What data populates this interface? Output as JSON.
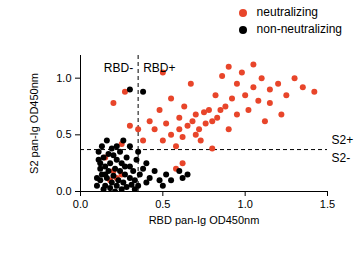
{
  "chart_data": {
    "type": "scatter",
    "x_label": "RBD pan-Ig OD450nm",
    "y_label": "S2 pan-Ig OD450nm",
    "xlim": [
      0,
      1.5
    ],
    "xticks": [
      {
        "value": 0,
        "label": "0.0"
      },
      0.5,
      {
        "value": 1,
        "label": "1.0"
      },
      1.5
    ],
    "ylim": [
      0,
      1.2
    ],
    "yticks": [
      {
        "value": 0,
        "label": "0.0"
      },
      0.5,
      {
        "value": 1,
        "label": "1.0"
      }
    ],
    "legend": "top-right",
    "marker": "circle",
    "x_threshold": {
      "value": 0.35,
      "labels": [
        "RBD-",
        "RBD+"
      ],
      "line_style": "dashed"
    },
    "y_threshold": {
      "value": 0.37,
      "labels": [
        "S2+",
        "S2-"
      ],
      "line_style": "dashed"
    },
    "series": [
      {
        "name": "neutralizing",
        "color": "#e8452a",
        "values": [
          [
            0.45,
            0.55
          ],
          [
            0.48,
            0.72
          ],
          [
            0.5,
            0.45
          ],
          [
            0.52,
            0.6
          ],
          [
            0.55,
            0.5
          ],
          [
            0.55,
            0.82
          ],
          [
            0.58,
            0.4
          ],
          [
            0.6,
            0.65
          ],
          [
            0.6,
            0.55
          ],
          [
            0.62,
            0.48
          ],
          [
            0.63,
            0.75
          ],
          [
            0.65,
            0.58
          ],
          [
            0.67,
            0.95
          ],
          [
            0.68,
            0.62
          ],
          [
            0.7,
            0.5
          ],
          [
            0.7,
            0.68
          ],
          [
            0.72,
            0.55
          ],
          [
            0.73,
            0.45
          ],
          [
            0.75,
            0.7
          ],
          [
            0.76,
            0.6
          ],
          [
            0.78,
            0.72
          ],
          [
            0.8,
            0.62
          ],
          [
            0.8,
            0.38
          ],
          [
            0.82,
            0.85
          ],
          [
            0.83,
            0.65
          ],
          [
            0.85,
            0.72
          ],
          [
            0.86,
            1.02
          ],
          [
            0.88,
            0.75
          ],
          [
            0.9,
            0.55
          ],
          [
            0.9,
            1.1
          ],
          [
            0.92,
            0.82
          ],
          [
            0.95,
            0.95
          ],
          [
            0.95,
            0.68
          ],
          [
            0.98,
            1.05
          ],
          [
            1.0,
            0.85
          ],
          [
            1.02,
            0.72
          ],
          [
            1.05,
            1.12
          ],
          [
            1.05,
            0.92
          ],
          [
            1.08,
            0.8
          ],
          [
            1.1,
            1.0
          ],
          [
            1.12,
            0.62
          ],
          [
            1.15,
            0.9
          ],
          [
            1.15,
            0.78
          ],
          [
            1.2,
            0.95
          ],
          [
            1.22,
            0.68
          ],
          [
            1.25,
            0.85
          ],
          [
            1.3,
            1.0
          ],
          [
            1.35,
            0.92
          ],
          [
            1.42,
            0.88
          ],
          [
            0.5,
            1.05
          ],
          [
            0.42,
            0.62
          ],
          [
            0.62,
            0.25
          ],
          [
            0.58,
            0.2
          ],
          [
            0.27,
            0.88
          ],
          [
            0.2,
            0.78
          ],
          [
            0.3,
            0.58
          ],
          [
            0.35,
            0.55
          ],
          [
            0.38,
            0.45
          ],
          [
            0.25,
            0.42
          ],
          [
            0.15,
            0.3
          ],
          [
            0.2,
            0.18
          ],
          [
            0.22,
            0.12
          ],
          [
            0.18,
            0.1
          ],
          [
            0.25,
            0.15
          ]
        ]
      },
      {
        "name": "non-neutralizing",
        "color": "#000000",
        "values": [
          [
            0.1,
            0.05
          ],
          [
            0.12,
            0.1
          ],
          [
            0.12,
            0.2
          ],
          [
            0.13,
            0.15
          ],
          [
            0.14,
            0.3
          ],
          [
            0.15,
            0.05
          ],
          [
            0.15,
            0.22
          ],
          [
            0.16,
            0.12
          ],
          [
            0.17,
            0.18
          ],
          [
            0.18,
            0.03
          ],
          [
            0.18,
            0.25
          ],
          [
            0.19,
            0.08
          ],
          [
            0.2,
            0.14
          ],
          [
            0.2,
            0.32
          ],
          [
            0.21,
            0.2
          ],
          [
            0.22,
            0.05
          ],
          [
            0.22,
            0.28
          ],
          [
            0.23,
            0.1
          ],
          [
            0.24,
            0.18
          ],
          [
            0.25,
            0.02
          ],
          [
            0.25,
            0.25
          ],
          [
            0.26,
            0.08
          ],
          [
            0.27,
            0.15
          ],
          [
            0.28,
            0.3
          ],
          [
            0.28,
            0.04
          ],
          [
            0.3,
            0.12
          ],
          [
            0.3,
            0.22
          ],
          [
            0.31,
            0.06
          ],
          [
            0.32,
            0.18
          ],
          [
            0.33,
            0.1
          ],
          [
            0.34,
            0.28
          ],
          [
            0.35,
            0.05
          ],
          [
            0.36,
            0.15
          ],
          [
            0.38,
            0.2
          ],
          [
            0.4,
            0.08
          ],
          [
            0.42,
            0.12
          ],
          [
            0.45,
            0.18
          ],
          [
            0.48,
            0.1
          ],
          [
            0.5,
            0.05
          ],
          [
            0.52,
            0.15
          ],
          [
            0.55,
            0.1
          ],
          [
            0.6,
            0.18
          ],
          [
            0.62,
            0.12
          ],
          [
            0.65,
            0.15
          ],
          [
            0.11,
            0.35
          ],
          [
            0.13,
            0.4
          ],
          [
            0.16,
            0.45
          ],
          [
            0.14,
            0.02
          ],
          [
            0.17,
            0.33
          ],
          [
            0.3,
            0.4
          ],
          [
            0.26,
            0.45
          ],
          [
            0.3,
            0.9
          ],
          [
            0.38,
            0.88
          ],
          [
            0.12,
            0.25
          ],
          [
            0.19,
            0.38
          ],
          [
            0.24,
            0.35
          ],
          [
            0.21,
            0.0
          ],
          [
            0.27,
            0.22
          ],
          [
            0.33,
            0.02
          ],
          [
            0.15,
            0.15
          ],
          [
            0.1,
            0.12
          ],
          [
            0.11,
            0.28
          ],
          [
            0.35,
            0.35
          ],
          [
            0.4,
            0.25
          ],
          [
            0.22,
            0.4
          ]
        ]
      }
    ]
  }
}
